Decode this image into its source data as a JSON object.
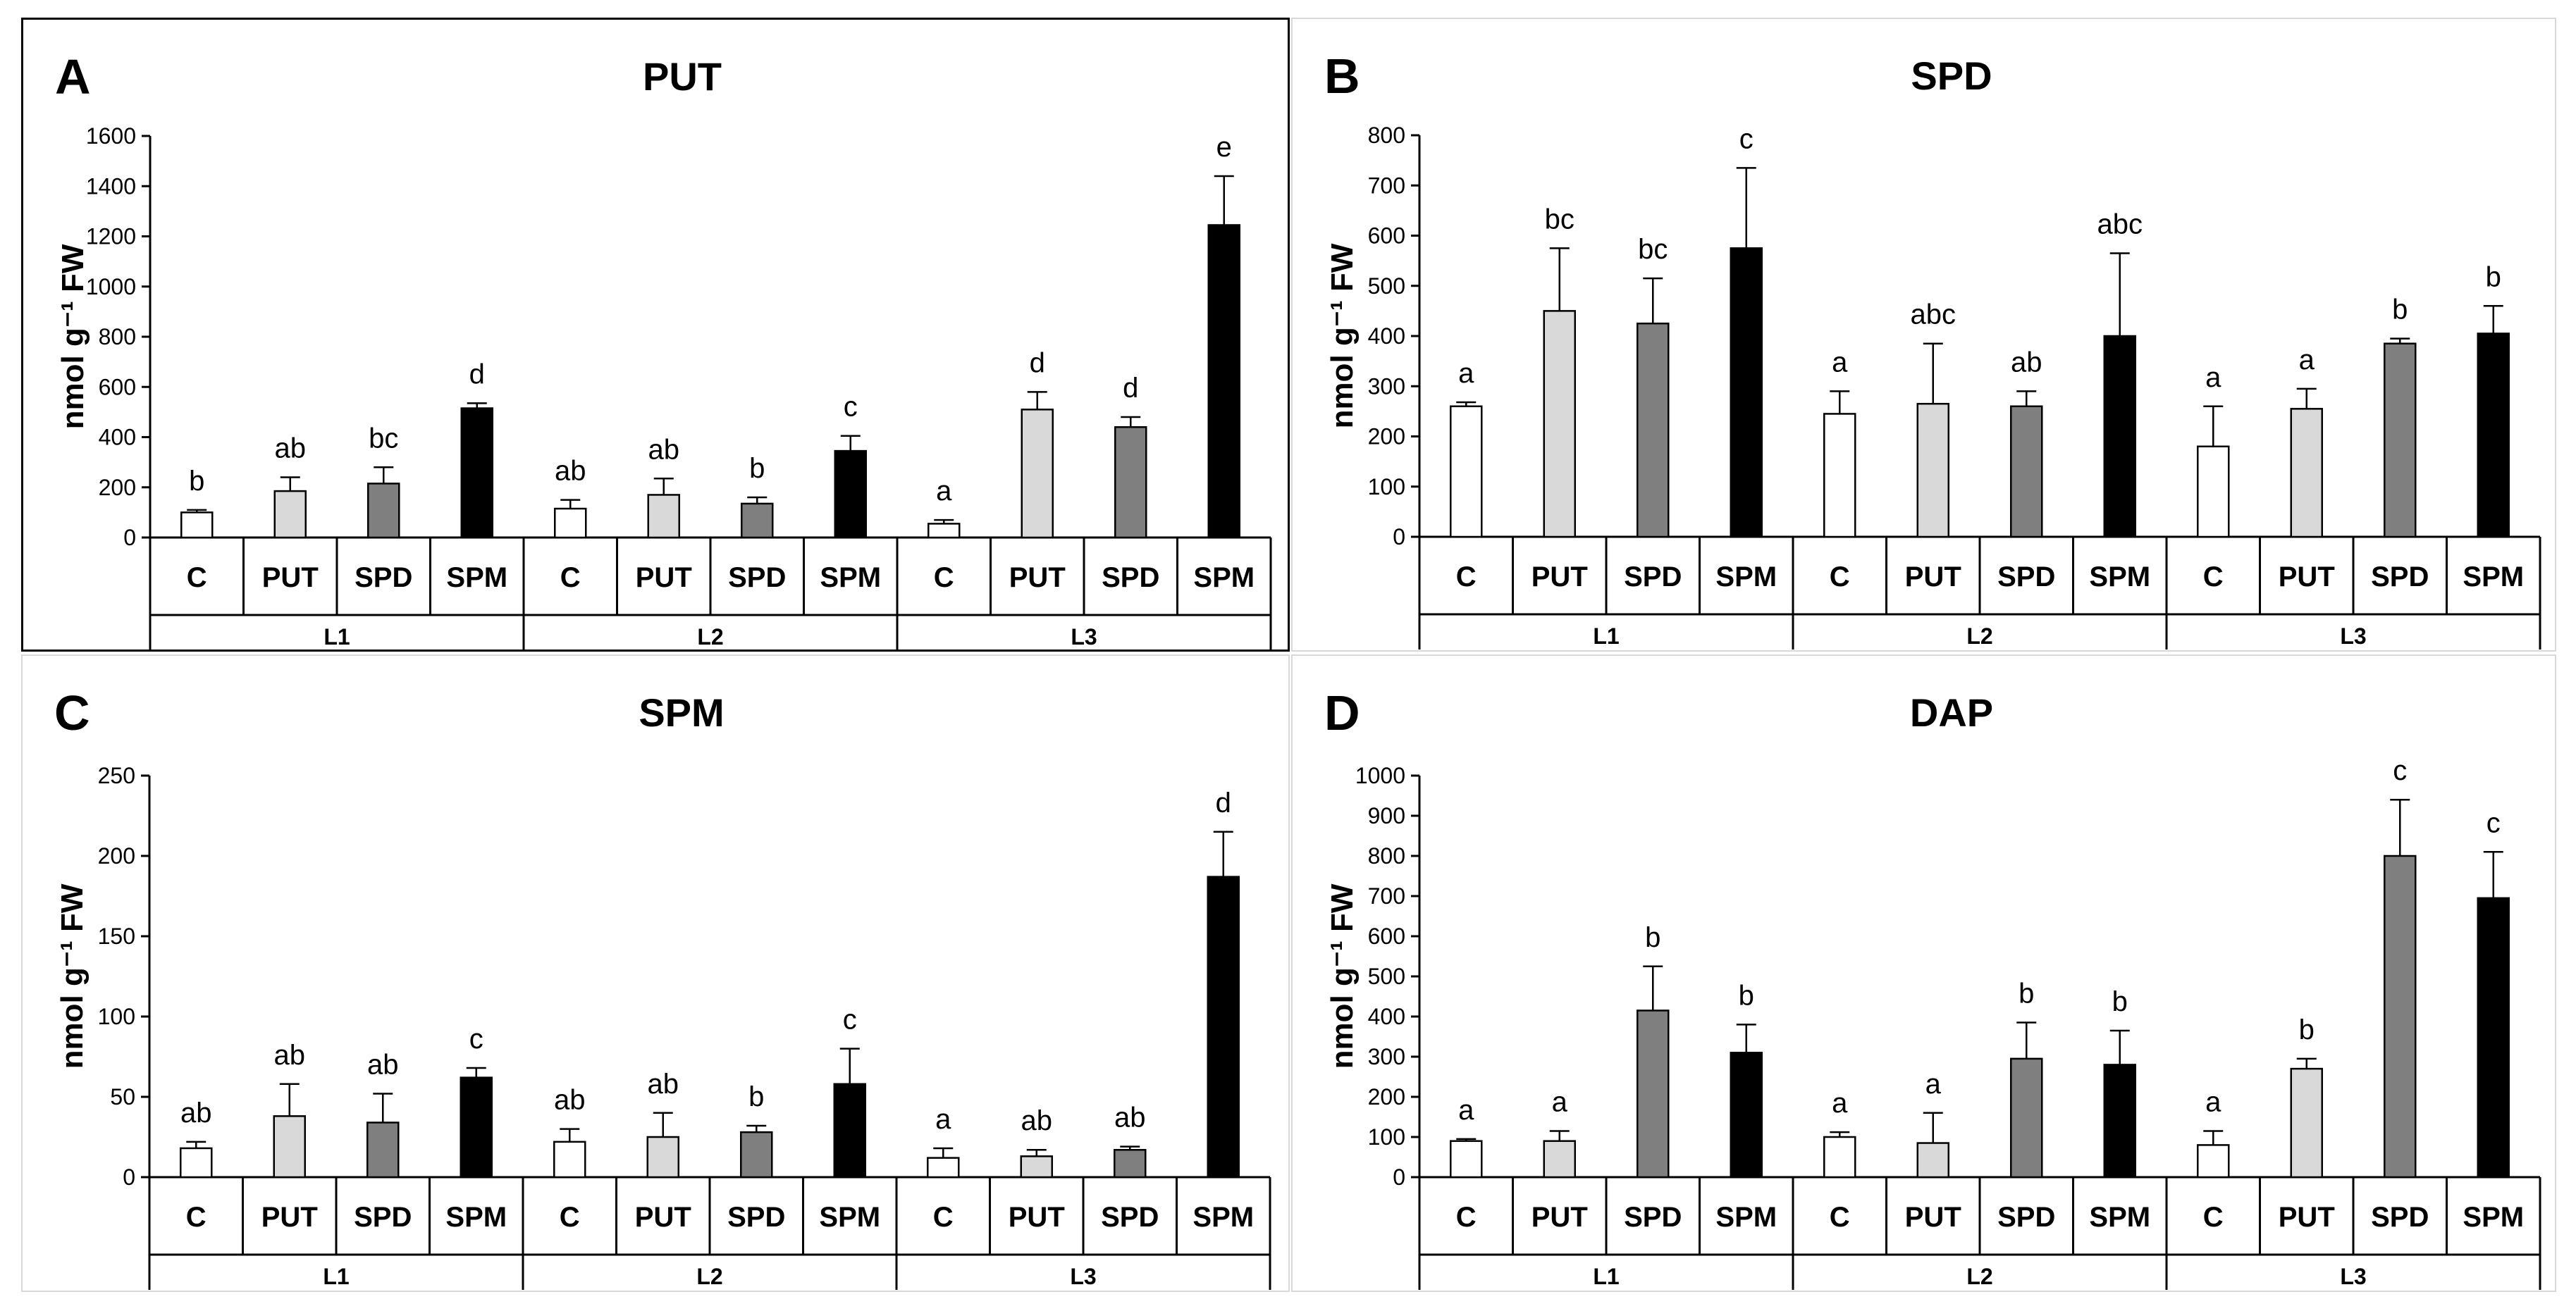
{
  "colors": {
    "C": "#ffffff",
    "PUT": "#d9d9d9",
    "SPD": "#7f7f7f",
    "SPM": "#000000"
  },
  "chart_data": [
    {
      "type": "bar",
      "panel": "A",
      "title": "PUT",
      "ylabel": "nmol g⁻¹ FW",
      "ylim": [
        0,
        1600
      ],
      "yticks": [
        0,
        200,
        400,
        600,
        800,
        1000,
        1200,
        1400,
        1600
      ],
      "groups": [
        "L1",
        "L2",
        "L3"
      ],
      "categories": [
        "C",
        "PUT",
        "SPD",
        "SPM"
      ],
      "values": [
        [
          100,
          185,
          215,
          515
        ],
        [
          115,
          170,
          135,
          345
        ],
        [
          55,
          510,
          440,
          1245
        ]
      ],
      "errors": [
        [
          10,
          55,
          65,
          20
        ],
        [
          35,
          65,
          25,
          60
        ],
        [
          15,
          70,
          40,
          195
        ]
      ],
      "letters": [
        [
          "b",
          "ab",
          "bc",
          "d"
        ],
        [
          "ab",
          "ab",
          "b",
          "c"
        ],
        [
          "a",
          "d",
          "d",
          "e"
        ]
      ]
    },
    {
      "type": "bar",
      "panel": "B",
      "title": "SPD",
      "ylabel": "nmol g⁻¹ FW",
      "ylim": [
        0,
        800
      ],
      "yticks": [
        0,
        100,
        200,
        300,
        400,
        500,
        600,
        700,
        800
      ],
      "groups": [
        "L1",
        "L2",
        "L3"
      ],
      "categories": [
        "C",
        "PUT",
        "SPD",
        "SPM"
      ],
      "values": [
        [
          260,
          450,
          425,
          575
        ],
        [
          245,
          265,
          260,
          400
        ],
        [
          180,
          255,
          385,
          405
        ]
      ],
      "errors": [
        [
          8,
          125,
          90,
          160
        ],
        [
          45,
          120,
          30,
          165
        ],
        [
          80,
          40,
          10,
          55
        ]
      ],
      "letters": [
        [
          "a",
          "bc",
          "bc",
          "c"
        ],
        [
          "a",
          "abc",
          "ab",
          "abc"
        ],
        [
          "a",
          "a",
          "b",
          "b"
        ]
      ]
    },
    {
      "type": "bar",
      "panel": "C",
      "title": "SPM",
      "ylabel": "nmol g⁻¹ FW",
      "ylim": [
        0,
        250
      ],
      "yticks": [
        0,
        50,
        100,
        150,
        200,
        250
      ],
      "groups": [
        "L1",
        "L2",
        "L3"
      ],
      "categories": [
        "C",
        "PUT",
        "SPD",
        "SPM"
      ],
      "values": [
        [
          18,
          38,
          34,
          62
        ],
        [
          22,
          25,
          28,
          58
        ],
        [
          12,
          13,
          17,
          187
        ]
      ],
      "errors": [
        [
          4,
          20,
          18,
          6
        ],
        [
          8,
          15,
          4,
          22
        ],
        [
          6,
          4,
          2,
          28
        ]
      ],
      "letters": [
        [
          "ab",
          "ab",
          "ab",
          "c"
        ],
        [
          "ab",
          "ab",
          "b",
          "c"
        ],
        [
          "a",
          "ab",
          "ab",
          "d"
        ]
      ]
    },
    {
      "type": "bar",
      "panel": "D",
      "title": "DAP",
      "ylabel": "nmol g⁻¹ FW",
      "ylim": [
        0,
        1000
      ],
      "yticks": [
        0,
        100,
        200,
        300,
        400,
        500,
        600,
        700,
        800,
        900,
        1000
      ],
      "groups": [
        "L1",
        "L2",
        "L3"
      ],
      "categories": [
        "C",
        "PUT",
        "SPD",
        "SPM"
      ],
      "values": [
        [
          90,
          90,
          415,
          310
        ],
        [
          100,
          85,
          295,
          280
        ],
        [
          80,
          270,
          800,
          695
        ]
      ],
      "errors": [
        [
          5,
          25,
          110,
          70
        ],
        [
          12,
          75,
          90,
          85
        ],
        [
          35,
          25,
          140,
          115
        ]
      ],
      "letters": [
        [
          "a",
          "a",
          "b",
          "b"
        ],
        [
          "a",
          "a",
          "b",
          "b"
        ],
        [
          "a",
          "b",
          "c",
          "c"
        ]
      ]
    }
  ]
}
